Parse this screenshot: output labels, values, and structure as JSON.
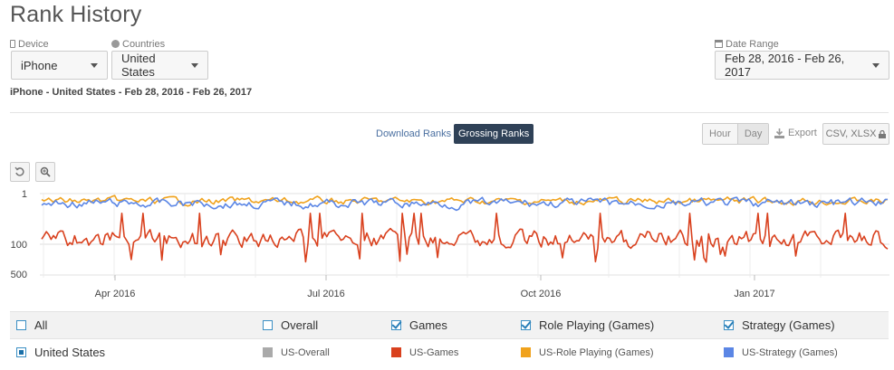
{
  "page": {
    "title": "Rank History"
  },
  "device": {
    "label": "Device",
    "icon": "mobile-icon",
    "value": "iPhone"
  },
  "countries": {
    "label": "Countries",
    "icon": "globe-icon",
    "value": "United States"
  },
  "date_range": {
    "label": "Date Range",
    "icon": "calendar-icon",
    "value": "Feb 28, 2016 - Feb 26, 2017"
  },
  "summary": "iPhone - United States - Feb 28, 2016 - Feb 26, 2017",
  "rank_tabs": {
    "download": "Download Ranks",
    "grossing": "Grossing Ranks",
    "active": "grossing"
  },
  "granularity": {
    "hour": "Hour",
    "day": "Day",
    "active": "day"
  },
  "export": {
    "label": "Export",
    "format": "CSV, XLSX"
  },
  "tools": {
    "reset_icon": "undo-icon",
    "zoom_icon": "zoom-in-icon"
  },
  "legend": {
    "row1": [
      {
        "label": "All",
        "checked": false
      },
      {
        "label": "Overall",
        "checked": false
      },
      {
        "label": "Games",
        "checked": true
      },
      {
        "label": "Role Playing (Games)",
        "checked": true
      },
      {
        "label": "Strategy (Games)",
        "checked": true
      }
    ],
    "row2": [
      {
        "label": "United States",
        "type": "radio",
        "selected": true
      },
      {
        "label": "US-Overall",
        "color": "#aaaaaa"
      },
      {
        "label": "US-Games",
        "color": "#d9411e"
      },
      {
        "label": "US-Role Playing (Games)",
        "color": "#f0a21c"
      },
      {
        "label": "US-Strategy (Games)",
        "color": "#5b86e5"
      }
    ]
  },
  "chart_data": {
    "type": "line",
    "y_scale": "log",
    "y_reversed": true,
    "y_ticks": [
      "1",
      "100",
      "500"
    ],
    "x_ticks": [
      "Apr 2016",
      "Jul 2016",
      "Oct 2016",
      "Jan 2017"
    ],
    "x_range": [
      "2016-02-28",
      "2017-02-26"
    ],
    "series": [
      {
        "name": "US-Games",
        "color": "#d9411e",
        "typical_rank_range": [
          20,
          200
        ]
      },
      {
        "name": "US-Role Playing (Games)",
        "color": "#f0a21c",
        "typical_rank_range": [
          1,
          4
        ]
      },
      {
        "name": "US-Strategy (Games)",
        "color": "#5b86e5",
        "typical_rank_range": [
          1,
          6
        ]
      }
    ]
  }
}
